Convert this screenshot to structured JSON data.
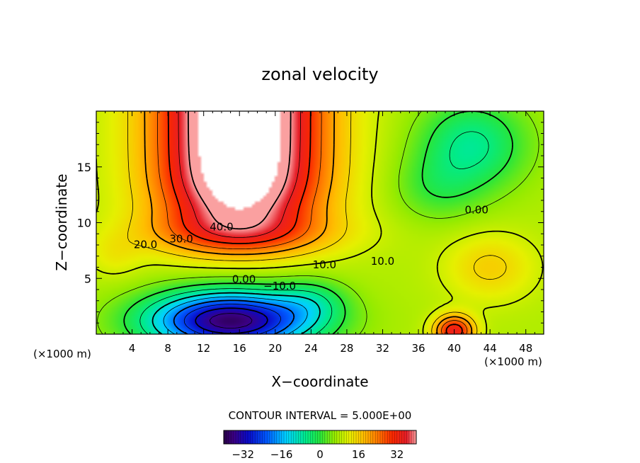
{
  "chart_data": {
    "type": "heatmap",
    "title": "zonal velocity",
    "xlabel": "X−coordinate",
    "ylabel": "Z−coordinate",
    "x_unit_left": "(×1000 m)",
    "x_unit_right": "(×1000 m)",
    "xlim": [
      0,
      50
    ],
    "ylim": [
      0,
      20
    ],
    "x_ticks": [
      4,
      8,
      12,
      16,
      20,
      24,
      28,
      32,
      36,
      40,
      44,
      48
    ],
    "y_ticks": [
      5,
      10,
      15
    ],
    "contour_interval_text": "CONTOUR INTERVAL = 5.000E+00",
    "contour_interval": 5.0,
    "colorbar": {
      "range": [
        -40,
        40
      ],
      "ticks": [
        -32,
        -16,
        0,
        16,
        32
      ]
    },
    "contour_labels": [
      {
        "text": "40.0",
        "x": 14.0,
        "z": 9.6
      },
      {
        "text": "30.0",
        "x": 9.5,
        "z": 8.5
      },
      {
        "text": "20.0",
        "x": 5.5,
        "z": 8.0
      },
      {
        "text": "10.0",
        "x": 25.5,
        "z": 6.2
      },
      {
        "text": "10.0",
        "x": 32.0,
        "z": 6.5
      },
      {
        "text": "0.00",
        "x": 16.5,
        "z": 4.9
      },
      {
        "text": "−10.0",
        "x": 20.5,
        "z": 4.3
      },
      {
        "text": "0.00",
        "x": 42.5,
        "z": 11.1
      }
    ],
    "field_features": [
      {
        "kind": "jet",
        "x": 16,
        "z": 14,
        "peak": 55
      },
      {
        "kind": "min",
        "x": 15,
        "z": 1.5,
        "peak": -36
      },
      {
        "kind": "max",
        "x": 40,
        "z": 0.3,
        "peak": 28
      },
      {
        "kind": "min",
        "x": 42,
        "z": 17,
        "peak": -6
      }
    ]
  }
}
